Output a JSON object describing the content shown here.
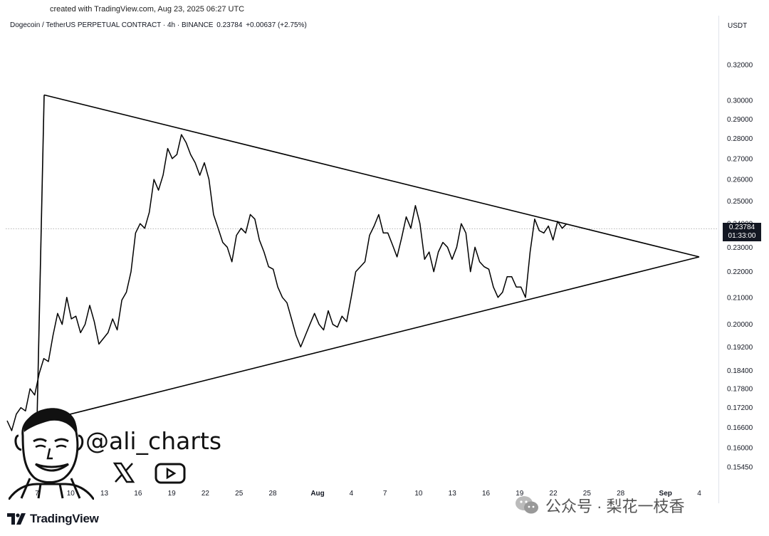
{
  "header": {
    "created": "created with TradingView.com, Aug 23, 2025 06:27 UTC",
    "symbol": "Dogecoin / TetherUS PERPETUAL CONTRACT · 4h · BINANCE",
    "last_price": "0.23784",
    "change": "+0.00637 (+2.75%)",
    "currency": "USDT"
  },
  "price_tag": {
    "price": "0.23784",
    "countdown": "01:33:00"
  },
  "branding": {
    "author_handle": "@ali_charts",
    "tv_logo_text": "TradingView",
    "watermark_text": "公众号 · 梨花一枝香"
  },
  "icons": {
    "x": "x-logo-icon",
    "youtube": "youtube-icon",
    "wechat": "wechat-icon",
    "tradingview": "tradingview-logo-icon",
    "avatar": "cartoon-avatar"
  },
  "colors": {
    "price_line": "#000000",
    "trendline": "#000000",
    "current_price_guide": "#9a9a9a",
    "tag_bg": "#131722"
  },
  "chart_data": {
    "type": "line",
    "scale": "log",
    "y_tick_labels": [
      "0.32000",
      "0.30000",
      "0.29000",
      "0.28000",
      "0.27000",
      "0.26000",
      "0.25000",
      "0.24000",
      "0.23000",
      "0.22000",
      "0.21000",
      "0.20000",
      "0.19200",
      "0.18400",
      "0.17800",
      "0.17200",
      "0.16600",
      "0.16000",
      "0.15450"
    ],
    "y_ticks": [
      0.32,
      0.3,
      0.29,
      0.28,
      0.27,
      0.26,
      0.25,
      0.24,
      0.23,
      0.22,
      0.21,
      0.2,
      0.192,
      0.184,
      0.178,
      0.172,
      0.166,
      0.16,
      0.1545
    ],
    "x_tick_labels": [
      "7",
      "10",
      "13",
      "16",
      "19",
      "22",
      "25",
      "28",
      "Aug",
      "4",
      "7",
      "10",
      "13",
      "16",
      "19",
      "22",
      "25",
      "28",
      "Sep",
      "4"
    ],
    "x_ticks": [
      "Jul 7",
      "Jul 10",
      "Jul 13",
      "Jul 16",
      "Jul 19",
      "Jul 22",
      "Jul 25",
      "Jul 28",
      "Aug 1",
      "Aug 4",
      "Aug 7",
      "Aug 10",
      "Aug 13",
      "Aug 16",
      "Aug 19",
      "Aug 22",
      "Aug 25",
      "Aug 28",
      "Sep 1",
      "Sep 4"
    ],
    "x_range": [
      "Jul 7",
      "Sep 4"
    ],
    "ylim": [
      0.151,
      0.335
    ],
    "grid": false,
    "series": [
      {
        "x": [
          "Jul 6",
          "Jul 6",
          "Jul 7",
          "Jul 7",
          "Jul 8",
          "Jul 8",
          "Jul 8",
          "Jul 9",
          "Jul 9",
          "Jul 9",
          "Jul 10",
          "Jul 10",
          "Jul 11",
          "Jul 11",
          "Jul 11",
          "Jul 12",
          "Jul 12",
          "Jul 13",
          "Jul 13",
          "Jul 13",
          "Jul 14",
          "Jul 14",
          "Jul 15",
          "Jul 15",
          "Jul 15",
          "Jul 16",
          "Jul 16",
          "Jul 17",
          "Jul 17",
          "Jul 17",
          "Jul 18",
          "Jul 18",
          "Jul 19",
          "Jul 19",
          "Jul 19",
          "Jul 20",
          "Jul 20",
          "Jul 21",
          "Jul 21",
          "Jul 21",
          "Jul 22",
          "Jul 22",
          "Jul 22",
          "Jul 23",
          "Jul 23",
          "Jul 24",
          "Jul 24",
          "Jul 24",
          "Jul 25",
          "Jul 25",
          "Jul 26",
          "Jul 26",
          "Jul 26",
          "Jul 27",
          "Jul 27",
          "Jul 28",
          "Jul 28",
          "Jul 28",
          "Jul 29",
          "Jul 29",
          "Jul 30",
          "Jul 30",
          "Jul 30",
          "Jul 31",
          "Jul 31",
          "Aug 1",
          "Aug 1",
          "Aug 1",
          "Aug 2",
          "Aug 2",
          "Aug 3",
          "Aug 3",
          "Aug 3",
          "Aug 4",
          "Aug 4",
          "Aug 5",
          "Aug 5",
          "Aug 5",
          "Aug 6",
          "Aug 6",
          "Aug 7",
          "Aug 7",
          "Aug 7",
          "Aug 8",
          "Aug 8",
          "Aug 9",
          "Aug 9",
          "Aug 9",
          "Aug 10",
          "Aug 10",
          "Aug 11",
          "Aug 11",
          "Aug 11",
          "Aug 12",
          "Aug 12",
          "Aug 13",
          "Aug 13",
          "Aug 13",
          "Aug 14",
          "Aug 14",
          "Aug 14",
          "Aug 15",
          "Aug 15",
          "Aug 16",
          "Aug 16",
          "Aug 16",
          "Aug 17",
          "Aug 17",
          "Aug 18",
          "Aug 18",
          "Aug 18",
          "Aug 19",
          "Aug 19",
          "Aug 20",
          "Aug 20",
          "Aug 20",
          "Aug 21",
          "Aug 21",
          "Aug 22",
          "Aug 22",
          "Aug 22",
          "Aug 22",
          "Aug 23"
        ],
        "y": [
          0.168,
          0.165,
          0.17,
          0.172,
          0.171,
          0.178,
          0.176,
          0.183,
          0.188,
          0.187,
          0.196,
          0.204,
          0.2,
          0.21,
          0.202,
          0.203,
          0.197,
          0.2,
          0.207,
          0.201,
          0.193,
          0.195,
          0.197,
          0.202,
          0.198,
          0.209,
          0.212,
          0.22,
          0.236,
          0.24,
          0.238,
          0.245,
          0.26,
          0.255,
          0.262,
          0.275,
          0.27,
          0.272,
          0.282,
          0.278,
          0.272,
          0.268,
          0.262,
          0.268,
          0.26,
          0.244,
          0.238,
          0.232,
          0.23,
          0.224,
          0.235,
          0.238,
          0.236,
          0.244,
          0.242,
          0.233,
          0.228,
          0.222,
          0.221,
          0.214,
          0.21,
          0.208,
          0.202,
          0.196,
          0.192,
          0.196,
          0.2,
          0.204,
          0.2,
          0.198,
          0.205,
          0.2,
          0.199,
          0.203,
          0.201,
          0.21,
          0.22,
          0.222,
          0.224,
          0.235,
          0.239,
          0.244,
          0.236,
          0.236,
          0.231,
          0.226,
          0.234,
          0.243,
          0.238,
          0.248,
          0.24,
          0.225,
          0.228,
          0.22,
          0.228,
          0.232,
          0.23,
          0.225,
          0.23,
          0.24,
          0.236,
          0.22,
          0.23,
          0.224,
          0.222,
          0.221,
          0.214,
          0.21,
          0.212,
          0.218,
          0.218,
          0.214,
          0.214,
          0.21,
          0.228,
          0.242,
          0.237,
          0.236,
          0.239,
          0.233,
          0.241,
          0.238,
          0.24
        ]
      }
    ],
    "trendlines": [
      {
        "from": {
          "x": "Jul 7",
          "y": 0.303
        },
        "to": {
          "x": "Sep 4",
          "y": 0.226
        }
      },
      {
        "from": {
          "x": "Jul 7",
          "y": 0.168
        },
        "to": {
          "x": "Sep 4",
          "y": 0.226
        }
      },
      {
        "from": {
          "x": "Jul 7",
          "y": 0.303
        },
        "to": {
          "x": "Jul 7",
          "y": 0.168
        }
      }
    ],
    "current_price": 0.23784
  }
}
